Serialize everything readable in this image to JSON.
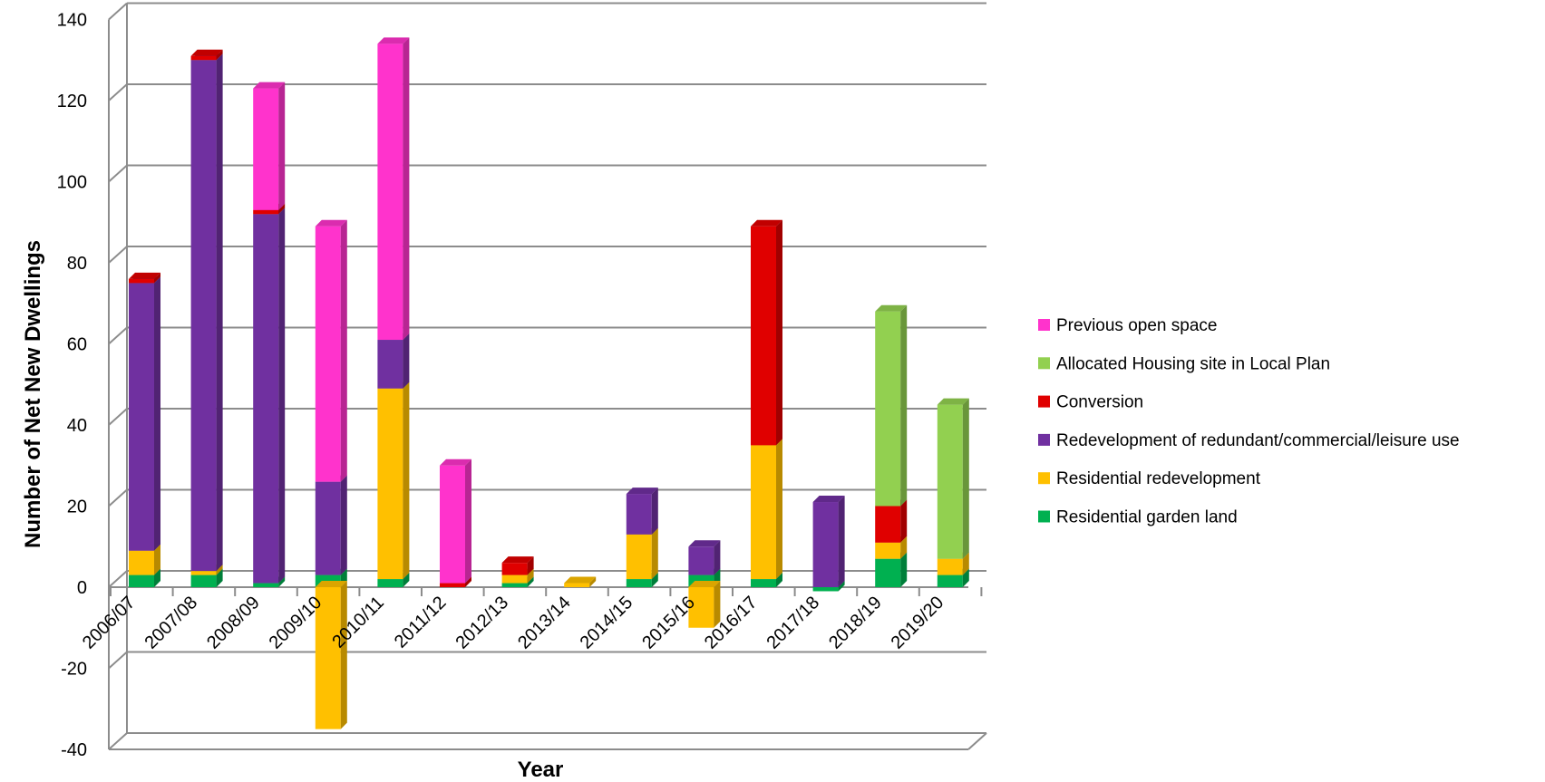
{
  "chart_data": {
    "type": "bar",
    "stacked": true,
    "three_d": true,
    "title": "",
    "xlabel": "Year",
    "ylabel": "Number of Net New Dwellings",
    "ylim": [
      -40,
      140
    ],
    "yticks": [
      -40,
      -20,
      0,
      20,
      40,
      60,
      80,
      100,
      120,
      140
    ],
    "grid": true,
    "legend_position": "right",
    "categories": [
      "2006/07",
      "2007/08",
      "2008/09",
      "2009/10",
      "2010/11",
      "2011/12",
      "2012/13",
      "2013/14",
      "2014/15",
      "2015/16",
      "2016/17",
      "2017/18",
      "2018/19",
      "2019/20"
    ],
    "series": [
      {
        "name": "Residential garden land",
        "color": "#00B050",
        "values": [
          3,
          3,
          1,
          3,
          2,
          0,
          1,
          0,
          2,
          3,
          2,
          -1,
          7,
          3
        ]
      },
      {
        "name": "Residential redevelopment",
        "color": "#FFC000",
        "values": [
          6,
          1,
          0,
          -35,
          47,
          0,
          2,
          1,
          11,
          -10,
          33,
          0,
          4,
          4
        ]
      },
      {
        "name": "Redevelopment of redundant/commercial/leisure use",
        "color": "#7030A0",
        "values": [
          66,
          126,
          91,
          23,
          12,
          0,
          0,
          0,
          10,
          7,
          0,
          21,
          0,
          0
        ]
      },
      {
        "name": "Conversion",
        "color": "#E00000",
        "values": [
          1,
          1,
          1,
          0,
          0,
          1,
          3,
          0,
          0,
          0,
          54,
          0,
          9,
          0
        ]
      },
      {
        "name": "Allocated Housing site in Local Plan",
        "color": "#92D050",
        "values": [
          0,
          0,
          0,
          0,
          0,
          0,
          0,
          0,
          0,
          0,
          0,
          0,
          48,
          38
        ]
      },
      {
        "name": "Previous open space",
        "color": "#FF33CC",
        "values": [
          0,
          0,
          30,
          63,
          73,
          29,
          0,
          0,
          0,
          0,
          0,
          0,
          0,
          0
        ]
      }
    ],
    "legend_order": [
      "Previous open space",
      "Allocated Housing site in Local Plan",
      "Conversion",
      "Redevelopment of redundant/commercial/leisure use",
      "Residential redevelopment",
      "Residential garden land"
    ]
  }
}
